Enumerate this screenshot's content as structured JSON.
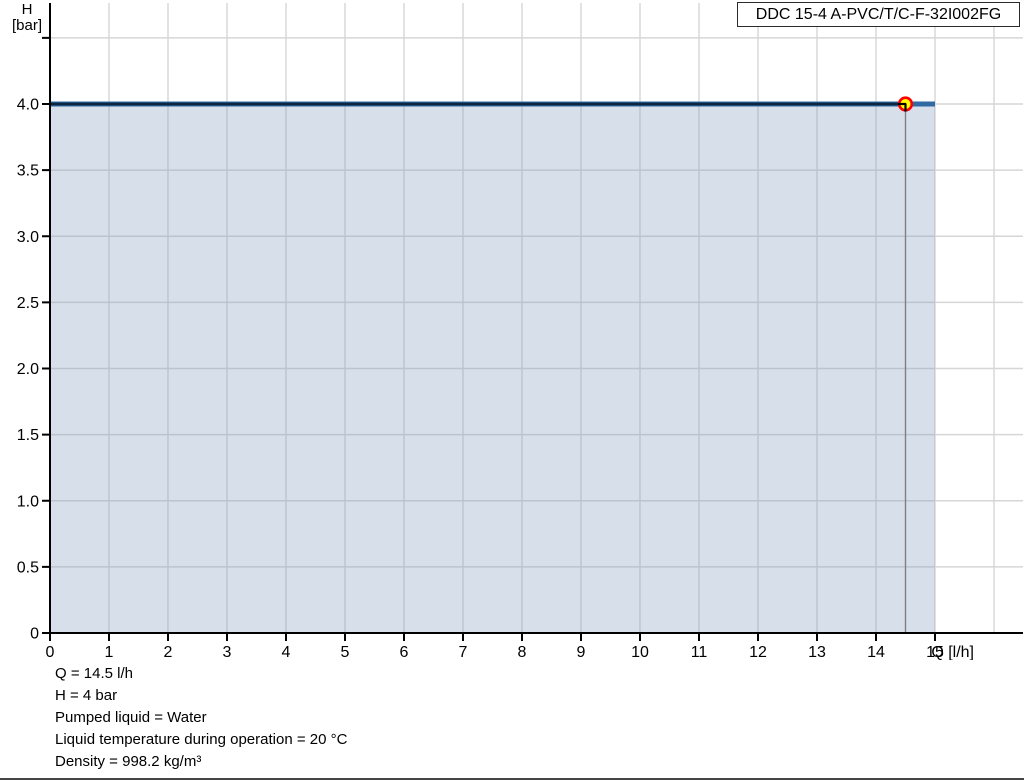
{
  "title_box": {
    "label": "DDC 15-4 A-PVC/T/C-F-32I002FG"
  },
  "chart_data": {
    "type": "line",
    "title": "DDC 15-4 A-PVC/T/C-F-32I002FG",
    "xlabel": "Q [l/h]",
    "ylabel": "H [bar]",
    "ylabel_line1": "H",
    "ylabel_line2": "[bar]",
    "xlim": [
      0,
      16.5
    ],
    "ylim": [
      0,
      4.76
    ],
    "x_ticks": [
      0,
      1,
      2,
      3,
      4,
      5,
      6,
      7,
      8,
      9,
      10,
      11,
      12,
      13,
      14,
      15
    ],
    "x_grid_extra": [
      16
    ],
    "y_tick_values": [
      0,
      0.5,
      1.0,
      1.5,
      2.0,
      2.5,
      3.0,
      3.5,
      4.0
    ],
    "y_tick_labels": [
      "0",
      "0.5",
      "1.0",
      "1.5",
      "2.0",
      "2.5",
      "3.0",
      "3.5",
      "4.0"
    ],
    "y_grid_extra": [
      4.5
    ],
    "grid": true,
    "legend": "none",
    "series": [
      {
        "name": "pump-curve-full",
        "x": [
          0,
          15
        ],
        "y": [
          4,
          4
        ],
        "color": "#2f6aa3",
        "width": 5
      },
      {
        "name": "pump-curve-duty-range",
        "x": [
          0,
          14.5
        ],
        "y": [
          4,
          4
        ],
        "color": "#0c2642",
        "width": 2.8
      }
    ],
    "area": {
      "x_range": [
        0,
        15
      ],
      "h_top": 4,
      "color": "rgba(130,156,190,0.32)"
    },
    "duty_point": {
      "q_lh": 14.5,
      "h_bar": 4,
      "fill": "#ffff00",
      "ring": "#ff0000"
    },
    "drop_line": {
      "q_lh": 14.5,
      "color": "#7f7f7f"
    },
    "colors": {
      "grid": "#d6d6d6",
      "axis": "#000000",
      "tick_label": "#000000"
    }
  },
  "footer": {
    "lines": [
      "Q = 14.5 l/h",
      "H = 4 bar",
      "Pumped liquid = Water",
      "Liquid temperature during operation = 20 °C",
      "Density = 998.2 kg/m³"
    ]
  }
}
